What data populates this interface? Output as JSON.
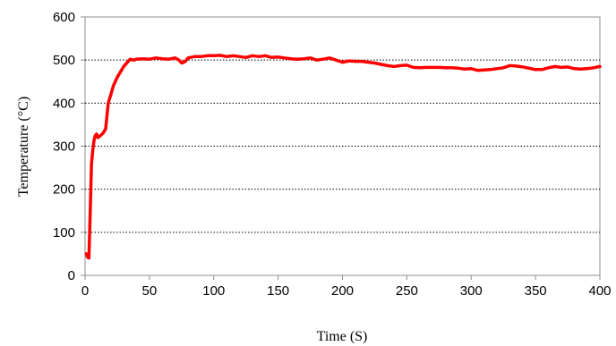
{
  "chart_data": {
    "type": "line",
    "title": "",
    "xlabel": "Time (S)",
    "ylabel": "Temperature (°C)",
    "xlim": [
      0,
      400
    ],
    "ylim": [
      0,
      600
    ],
    "x_ticks": [
      "0",
      "50",
      "100",
      "150",
      "200",
      "250",
      "300",
      "350",
      "400"
    ],
    "y_ticks": [
      "0",
      "100",
      "200",
      "300",
      "400",
      "500",
      "600"
    ],
    "grid": "horizontal dotted",
    "legend": "none",
    "series": [
      {
        "color": "#ff0000",
        "x": [
          1,
          2,
          3,
          4,
          5,
          6,
          7,
          8,
          9,
          10,
          12,
          14,
          16,
          18,
          20,
          22,
          25,
          28,
          30,
          33,
          35,
          38,
          40,
          45,
          50,
          55,
          60,
          65,
          70,
          73,
          75,
          78,
          80,
          85,
          90,
          95,
          100,
          105,
          110,
          115,
          120,
          125,
          130,
          135,
          140,
          145,
          150,
          155,
          160,
          165,
          170,
          175,
          180,
          185,
          190,
          195,
          200,
          205,
          210,
          215,
          220,
          225,
          230,
          235,
          240,
          245,
          250,
          255,
          260,
          265,
          270,
          275,
          280,
          285,
          290,
          295,
          300,
          305,
          310,
          315,
          320,
          325,
          330,
          335,
          340,
          345,
          350,
          355,
          360,
          365,
          370,
          375,
          380,
          385,
          390,
          395,
          400
        ],
        "y": [
          50,
          42,
          40,
          150,
          260,
          290,
          315,
          325,
          328,
          320,
          325,
          330,
          340,
          400,
          420,
          440,
          460,
          475,
          485,
          495,
          502,
          500,
          502,
          503,
          502,
          505,
          503,
          502,
          505,
          500,
          493,
          497,
          505,
          508,
          508,
          510,
          510,
          511,
          508,
          510,
          508,
          506,
          510,
          508,
          510,
          506,
          507,
          505,
          503,
          502,
          503,
          505,
          500,
          502,
          505,
          500,
          495,
          498,
          497,
          497,
          495,
          493,
          490,
          487,
          485,
          487,
          488,
          483,
          482,
          483,
          483,
          483,
          482,
          482,
          481,
          479,
          480,
          476,
          477,
          478,
          480,
          482,
          487,
          486,
          484,
          481,
          478,
          478,
          482,
          485,
          483,
          484,
          480,
          479,
          480,
          482,
          485
        ]
      }
    ]
  }
}
